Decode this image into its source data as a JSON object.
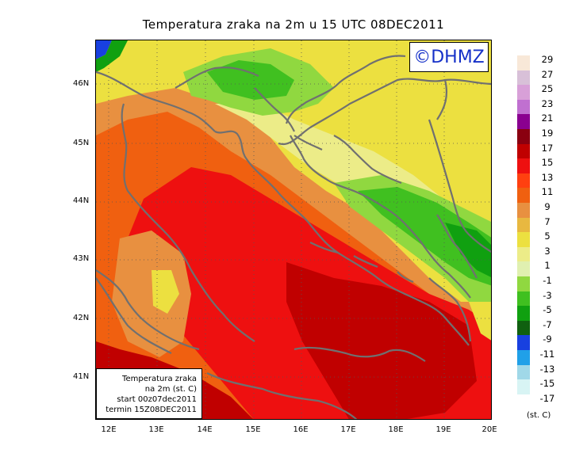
{
  "title": "Temperatura zraka na 2m u 15 UTC 08DEC2011",
  "logo_text": "©DHMZ",
  "info": {
    "line1": "Temperatura zraka",
    "line2": "na 2m (st. C)",
    "line3": "start 00z07dec2011",
    "line4": "termin 15Z08DEC2011"
  },
  "axes": {
    "lat_labels": [
      "46N",
      "45N",
      "44N",
      "43N",
      "42N",
      "41N"
    ],
    "lon_labels": [
      "12E",
      "13E",
      "14E",
      "15E",
      "16E",
      "17E",
      "18E",
      "19E",
      "20E"
    ]
  },
  "legend": {
    "units": "(st. C)",
    "entries": [
      {
        "label": "29",
        "color": "#f8e8d8"
      },
      {
        "label": "27",
        "color": "#d8c0d8"
      },
      {
        "label": "25",
        "color": "#d8a0d8"
      },
      {
        "label": "23",
        "color": "#c070d0"
      },
      {
        "label": "21",
        "color": "#8a0090"
      },
      {
        "label": "19",
        "color": "#8a0010"
      },
      {
        "label": "17",
        "color": "#c00000"
      },
      {
        "label": "15",
        "color": "#ee1010"
      },
      {
        "label": "13",
        "color": "#ff4010"
      },
      {
        "label": "11",
        "color": "#f06010"
      },
      {
        "label": "9",
        "color": "#e89040"
      },
      {
        "label": "7",
        "color": "#e8b840"
      },
      {
        "label": "5",
        "color": "#ece040"
      },
      {
        "label": "3",
        "color": "#ecec88"
      },
      {
        "label": "1",
        "color": "#e0f0b0"
      },
      {
        "label": "-1",
        "color": "#90d840"
      },
      {
        "label": "-3",
        "color": "#40c020"
      },
      {
        "label": "-5",
        "color": "#10a010"
      },
      {
        "label": "-7",
        "color": "#106010"
      },
      {
        "label": "-9",
        "color": "#1840e0"
      },
      {
        "label": "-11",
        "color": "#20a0e8"
      },
      {
        "label": "-13",
        "color": "#a0d8e8"
      },
      {
        "label": "-15",
        "color": "#d8f4f4"
      },
      {
        "label": "-17",
        "color": "#ffffff"
      }
    ]
  }
}
